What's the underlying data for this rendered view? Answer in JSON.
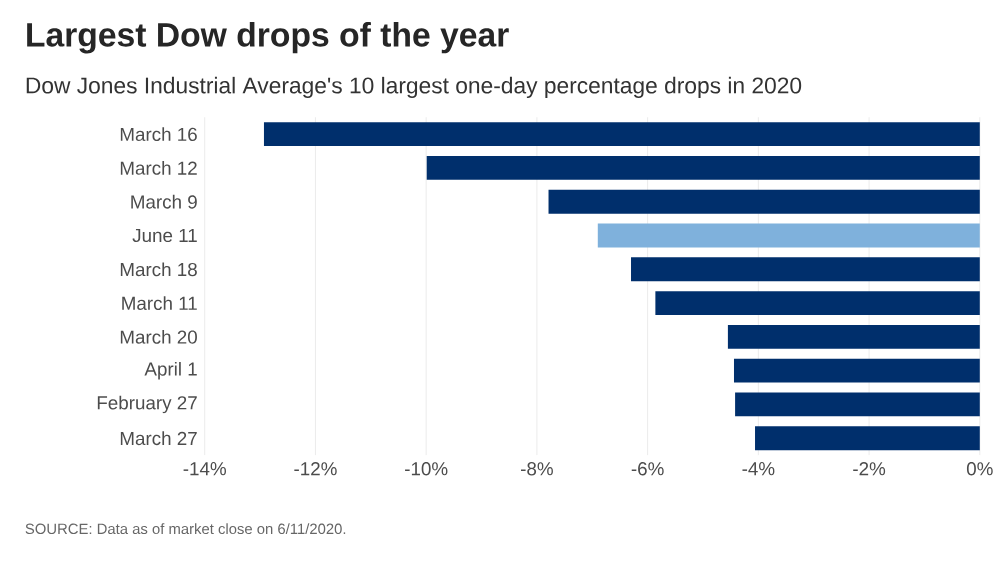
{
  "chart_data": {
    "type": "bar",
    "orientation": "horizontal",
    "title": "Largest Dow drops of the year",
    "subtitle": "Dow Jones Industrial Average's 10 largest one-day percentage drops in 2020",
    "categories": [
      "March 16",
      "March 12",
      "March 9",
      "June 11",
      "March 18",
      "March 11",
      "March 20",
      "April 1",
      "February 27",
      "March 27"
    ],
    "values": [
      -12.93,
      -9.99,
      -7.79,
      -6.9,
      -6.3,
      -5.86,
      -4.55,
      -4.44,
      -4.42,
      -4.06
    ],
    "colors": [
      "#002f6c",
      "#002f6c",
      "#002f6c",
      "#7fb1dc",
      "#002f6c",
      "#002f6c",
      "#002f6c",
      "#002f6c",
      "#002f6c",
      "#002f6c"
    ],
    "xlim": [
      -14,
      0
    ],
    "xticks": [
      {
        "value": -14,
        "label": "-14%"
      },
      {
        "value": -12,
        "label": "-12%"
      },
      {
        "value": -10,
        "label": "-10%"
      },
      {
        "value": -8,
        "label": "-8%"
      },
      {
        "value": -6,
        "label": "-6%"
      },
      {
        "value": -4,
        "label": "-4%"
      },
      {
        "value": -2,
        "label": "-2%"
      },
      {
        "value": 0,
        "label": "0%"
      }
    ],
    "grid": "x",
    "annotations": [
      "SOURCE: Data as of market close on 6/11/2020."
    ]
  }
}
